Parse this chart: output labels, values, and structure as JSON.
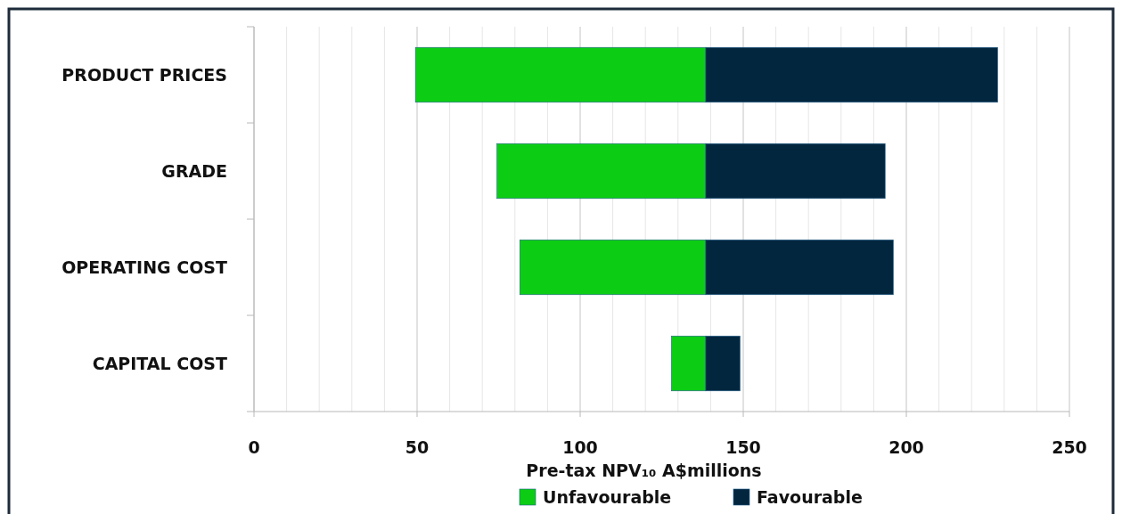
{
  "chart_data": {
    "type": "bar",
    "orientation": "horizontal",
    "categories": [
      "PRODUCT PRICES",
      "GRADE",
      "OPERATING COST",
      "CAPITAL COST"
    ],
    "series": [
      {
        "name": "Unfavourable",
        "color": "#0ccd14",
        "base": [
          49.5,
          74.5,
          81.5,
          128
        ],
        "values": [
          89,
          64,
          57,
          10.5
        ]
      },
      {
        "name": "Favourable",
        "color": "#03263f",
        "base": [
          138.5,
          138.5,
          138.5,
          138.5
        ],
        "values": [
          89.5,
          55,
          57.5,
          10.5
        ]
      }
    ],
    "xlim": [
      0,
      250
    ],
    "xticks": [
      0,
      {
        "value": 10,
        "label": null
      },
      {
        "value": 20,
        "label": null
      },
      {
        "value": 30,
        "label": null
      },
      {
        "value": 40,
        "label": null
      },
      50,
      {
        "value": 60,
        "label": null
      },
      {
        "value": 70,
        "label": null
      },
      {
        "value": 80,
        "label": null
      },
      {
        "value": 90,
        "label": null
      },
      100,
      {
        "value": 110,
        "label": null
      },
      {
        "value": 120,
        "label": null
      },
      {
        "value": 130,
        "label": null
      },
      {
        "value": 140,
        "label": null
      },
      150,
      {
        "value": 160,
        "label": null
      },
      {
        "value": 170,
        "label": null
      },
      {
        "value": 180,
        "label": null
      },
      {
        "value": 190,
        "label": null
      },
      200,
      {
        "value": 210,
        "label": null
      },
      {
        "value": 220,
        "label": null
      },
      {
        "value": 230,
        "label": null
      },
      {
        "value": 240,
        "label": null
      },
      250
    ],
    "xlabel": "Pre-tax NPV₁₀ A$millions",
    "grid": "x",
    "legend": "bottom"
  }
}
